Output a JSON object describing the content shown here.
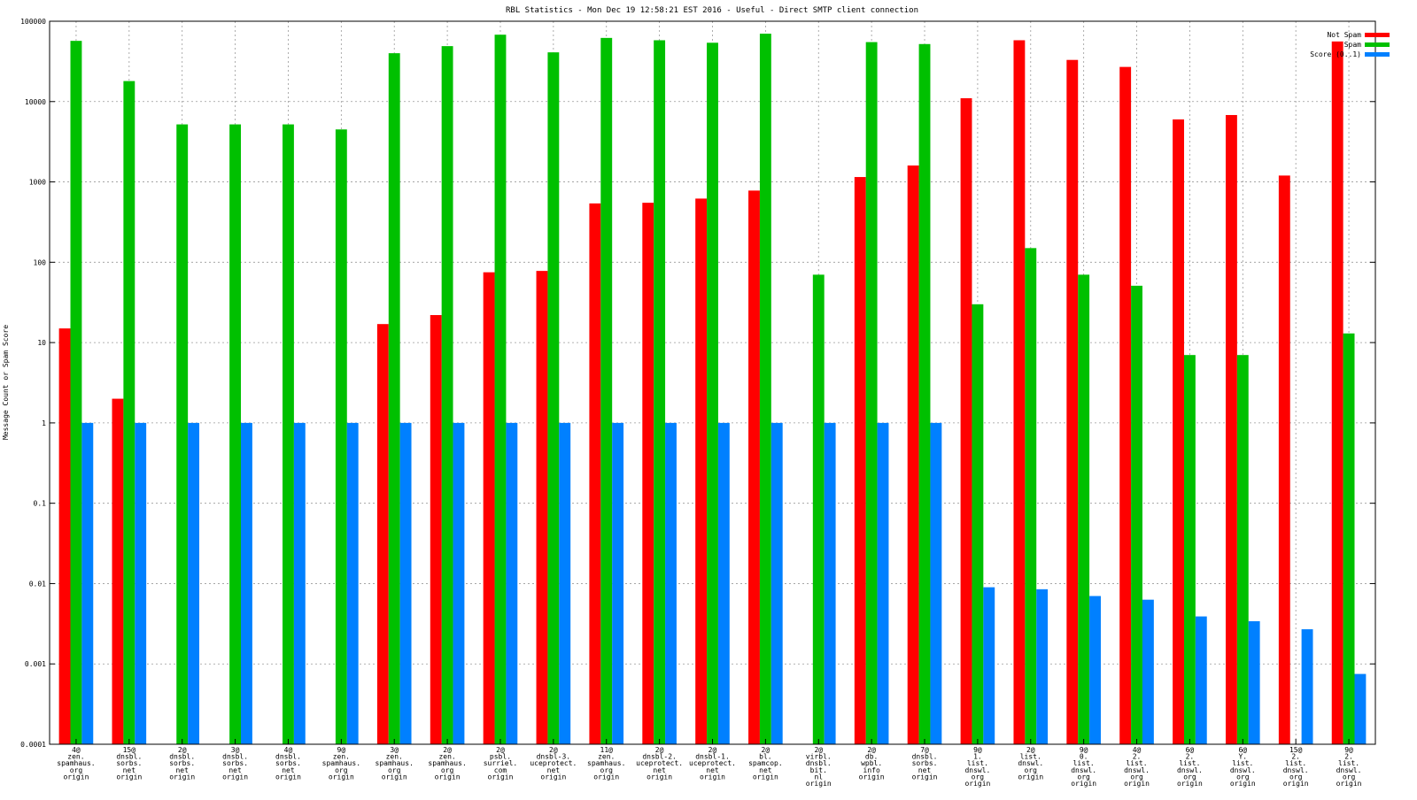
{
  "chart_data": {
    "type": "bar",
    "title": "RBL Statistics - Mon Dec 19 12:58:21 EST 2016 - Useful - Direct SMTP client connection",
    "xlabel": "",
    "ylabel": "Message Count or Spam Score",
    "yscale": "log",
    "ylim": [
      0.0001,
      100000
    ],
    "yticks": [
      "0.0001",
      "0.001",
      "0.01",
      "0.1",
      "1",
      "10",
      "100",
      "1000",
      "10000",
      "100000"
    ],
    "grid": true,
    "legend_position": "top-right",
    "categories": [
      "4@\nzen.\nspamhaus.\norg\norigin",
      "15@\ndnsbl.\nsorbs.\nnet\norigin",
      "2@\ndnsbl.\nsorbs.\nnet\norigin",
      "3@\ndnsbl.\nsorbs.\nnet\norigin",
      "4@\ndnsbl.\nsorbs.\nnet\norigin",
      "9@\nzen.\nspamhaus.\norg\norigin",
      "3@\nzen.\nspamhaus.\norg\norigin",
      "2@\nzen.\nspamhaus.\norg\norigin",
      "2@\npsbl.\nsurriel.\ncom\norigin",
      "2@\ndnsbl-3.\nuceprotect.\nnet\norigin",
      "11@\nzen.\nspamhaus.\norg\norigin",
      "2@\ndnsbl-2.\nuceprotect.\nnet\norigin",
      "2@\ndnsbl-1.\nuceprotect.\nnet\norigin",
      "2@\nbl.\nspamcop.\nnet\norigin",
      "2@\nvirbl.\ndnsbl.\nbit.\nnl\norigin",
      "2@\ndb.\nwpbl.\ninfo\norigin",
      "7@\ndnsbl.\nsorbs.\nnet\norigin",
      "9@\n1.\nlist.\ndnswl.\norg\norigin",
      "2@\nlist.\ndnswl.\norg\norigin",
      "9@\n0.\nlist.\ndnswl.\norg\norigin",
      "4@\n2.\nlist.\ndnswl.\norg\norigin",
      "6@\n2.\nlist.\ndnswl.\norg\norigin",
      "6@\nY.\nlist.\ndnswl.\norg\norigin",
      "15@\n2.\nlist.\ndnswl.\norg\norigin",
      "9@\n2.\nlist.\ndnswl.\norg\norigin"
    ],
    "series": [
      {
        "name": "Not Spam",
        "color": "#ff0000",
        "values": [
          15,
          2,
          null,
          null,
          null,
          null,
          17,
          22,
          75,
          78,
          540,
          550,
          620,
          780,
          null,
          1150,
          1600,
          11000,
          58000,
          33000,
          27000,
          6000,
          6800,
          1200,
          56000
        ]
      },
      {
        "name": "Spam",
        "color": "#00c000",
        "values": [
          57000,
          18000,
          5200,
          5200,
          5200,
          4500,
          40000,
          49000,
          68000,
          41000,
          62000,
          58000,
          54000,
          70000,
          70,
          55000,
          52000,
          30,
          150,
          70,
          51,
          7,
          7,
          null,
          13
        ]
      },
      {
        "name": "Score (0..1)",
        "color": "#0080ff",
        "values": [
          1,
          1,
          1,
          1,
          1,
          1,
          1,
          1,
          1,
          1,
          1,
          1,
          1,
          1,
          1,
          1,
          1,
          0.009,
          0.0085,
          0.007,
          0.0063,
          0.0039,
          0.0034,
          0.0027,
          0.00075
        ]
      }
    ]
  }
}
